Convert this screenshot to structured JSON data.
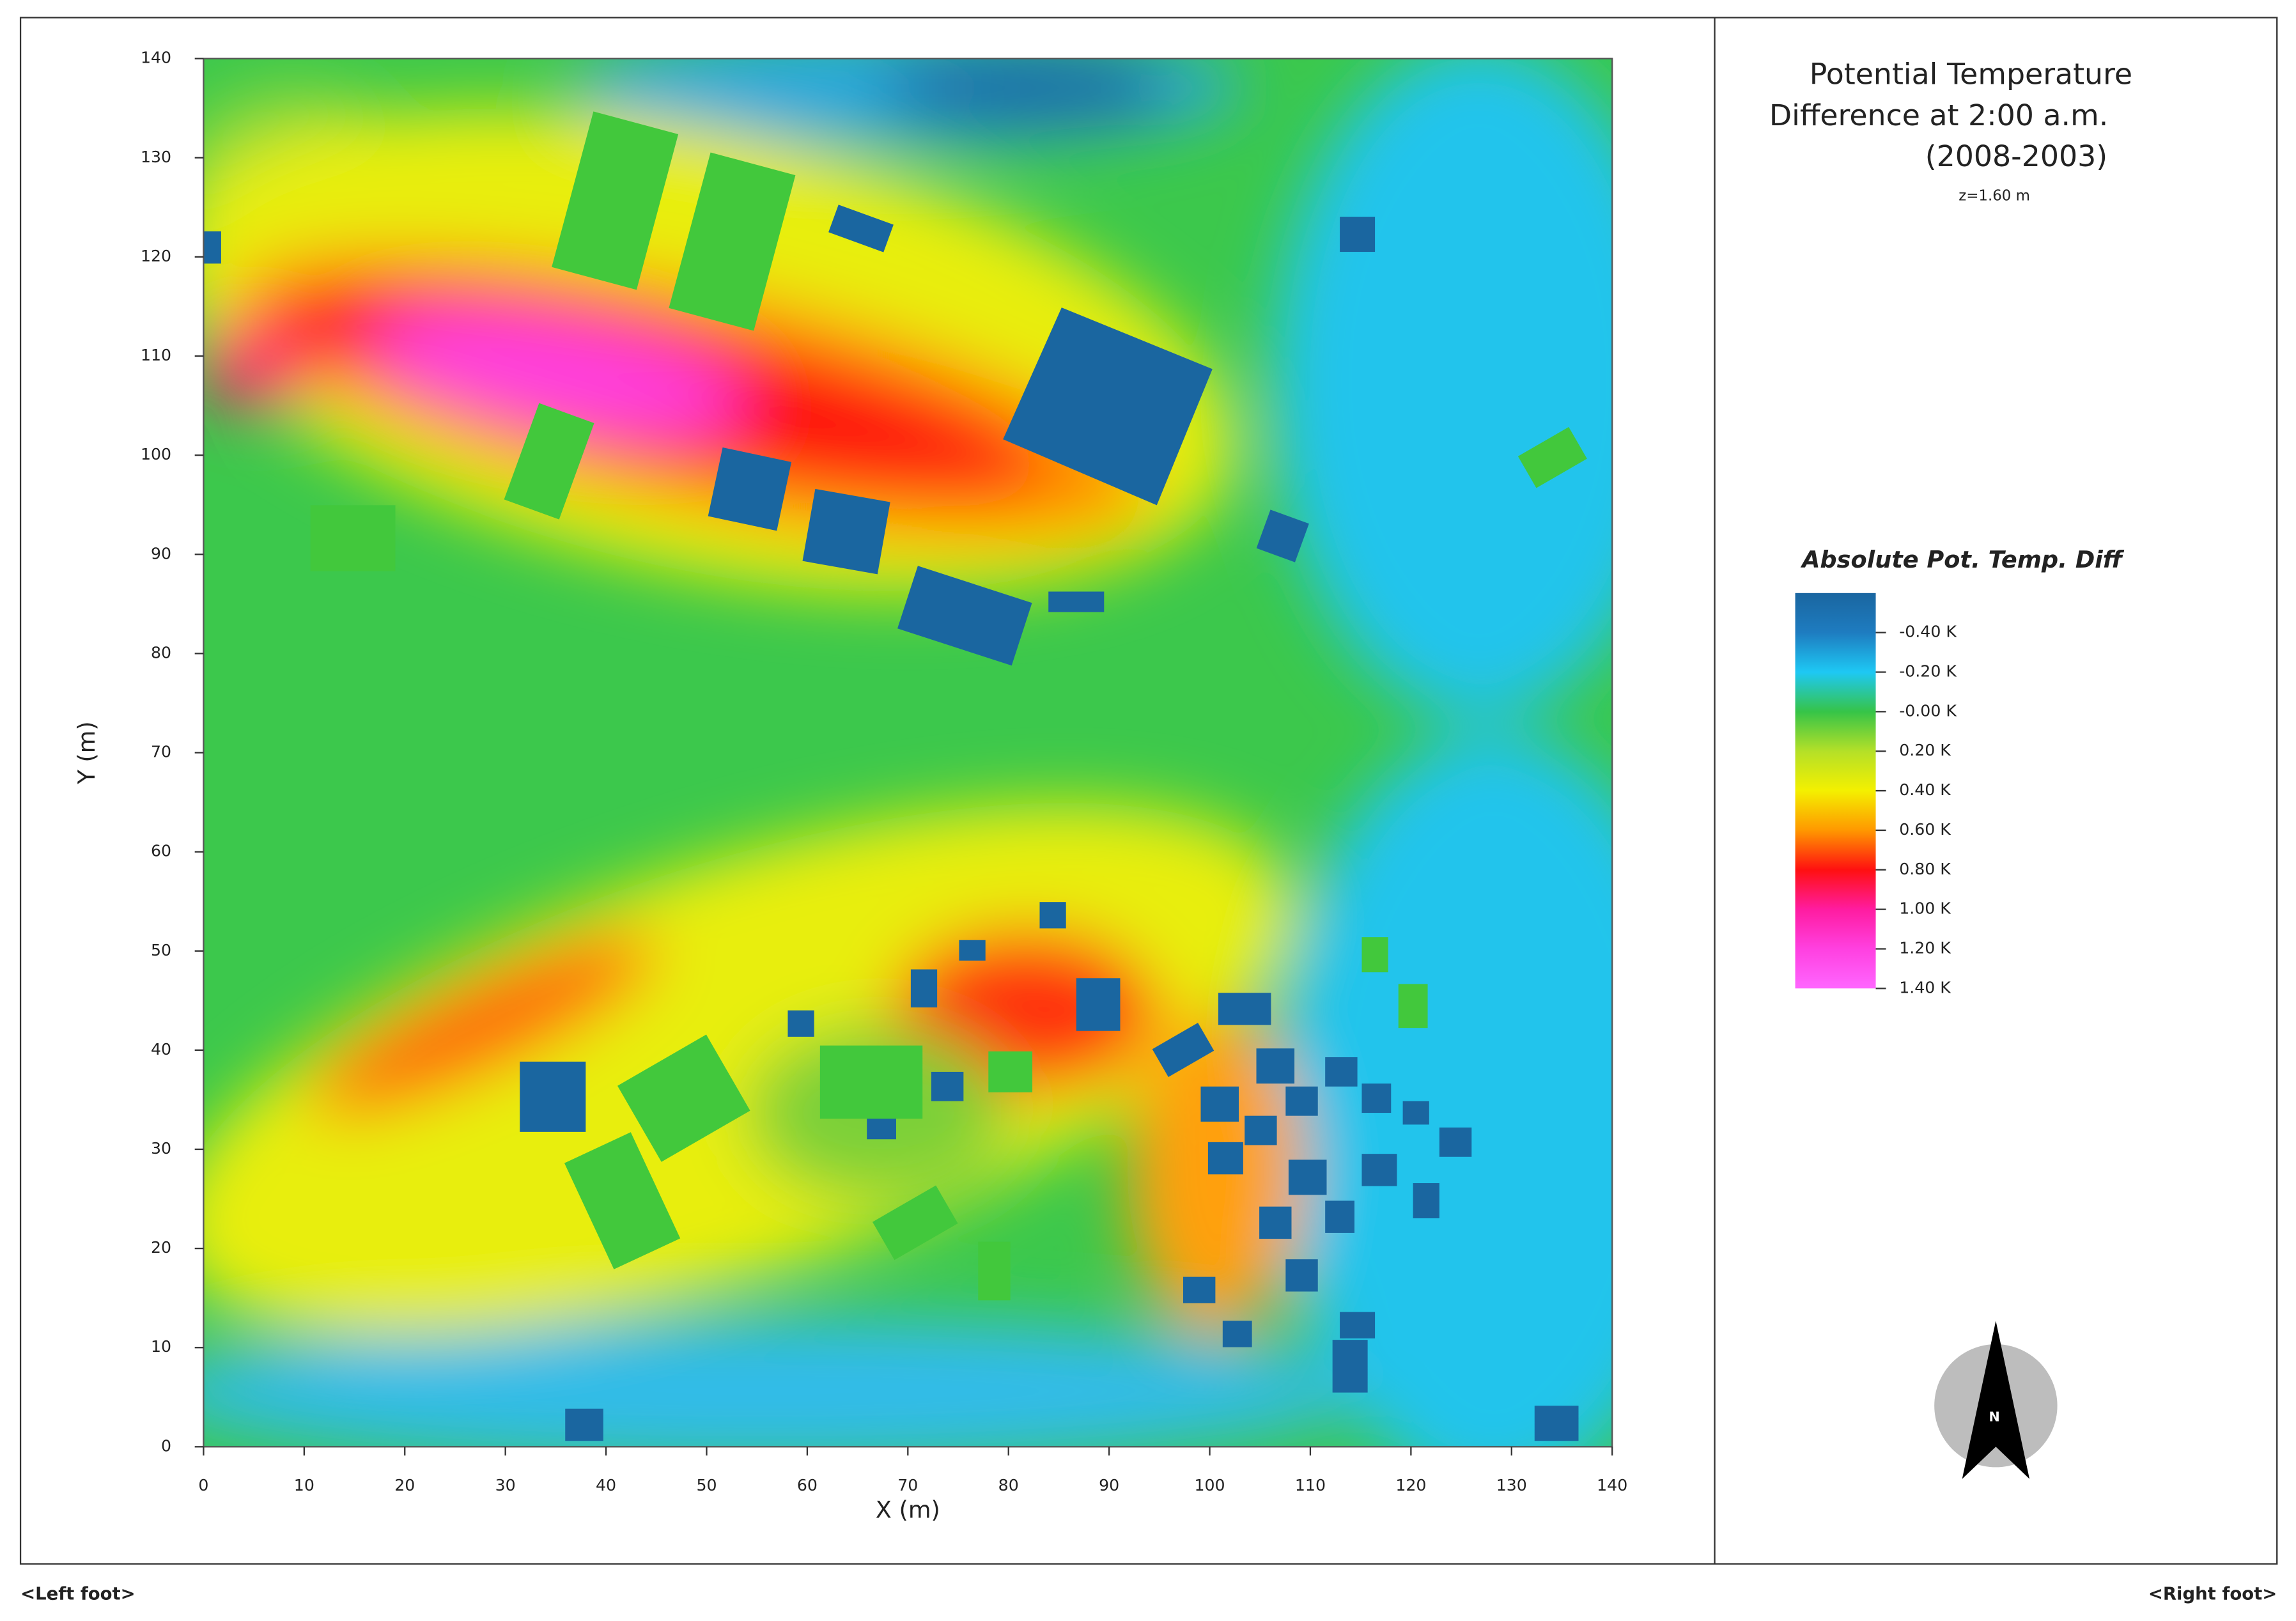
{
  "chart_data": {
    "type": "heatmap",
    "title": [
      "Potential Temperature",
      "Difference at 2:00 a.m.",
      "(2008-2003)"
    ],
    "subtitle": "z=1.60 m",
    "x_label": "X (m)",
    "y_label": "Y (m)",
    "xlim": [
      0,
      140
    ],
    "xticks": [
      0,
      10,
      20,
      30,
      40,
      50,
      60,
      70,
      80,
      90,
      100,
      110,
      120,
      130,
      140
    ],
    "ylim": [
      0,
      140
    ],
    "yticks": [
      0,
      10,
      20,
      30,
      40,
      50,
      60,
      70,
      80,
      90,
      100,
      110,
      120,
      130,
      140
    ],
    "legend_title": "Absolute Pot. Temp. Diff",
    "clim": [
      -0.6,
      1.4
    ],
    "colorscale": [
      {
        "value": -0.6,
        "color": "#1a66a0"
      },
      {
        "value": -0.4,
        "color": "#1e7cc0"
      },
      {
        "value": -0.2,
        "color": "#1ec8f4"
      },
      {
        "value": 0,
        "color": "#36c448"
      },
      {
        "value": 0.2,
        "color": "#b4e028"
      },
      {
        "value": 0.4,
        "color": "#f4f000"
      },
      {
        "value": 0.6,
        "color": "#ff9800"
      },
      {
        "value": 0.8,
        "color": "#ff1010"
      },
      {
        "value": 1.0,
        "color": "#ff1ca0"
      },
      {
        "value": 1.2,
        "color": "#ff40e0"
      },
      {
        "value": 1.4,
        "color": "#ff66ff"
      }
    ],
    "cticks": [
      {
        "value": -0.4,
        "label": "-0.40 K"
      },
      {
        "value": -0.2,
        "label": "-0.20 K"
      },
      {
        "value": 0,
        "label": "-0.00 K"
      },
      {
        "value": 0.2,
        "label": "0.20 K"
      },
      {
        "value": 0.4,
        "label": "0.40 K"
      },
      {
        "value": 0.6,
        "label": "0.60 K"
      },
      {
        "value": 0.8,
        "label": "0.80 K"
      },
      {
        "value": 1.0,
        "label": "1.00 K"
      },
      {
        "value": 1.2,
        "label": "1.20 K"
      },
      {
        "value": 1.4,
        "label": "1.40 K"
      }
    ],
    "north_label": "N",
    "footer_left": "<Left foot>",
    "footer_right": "<Right foot>"
  }
}
